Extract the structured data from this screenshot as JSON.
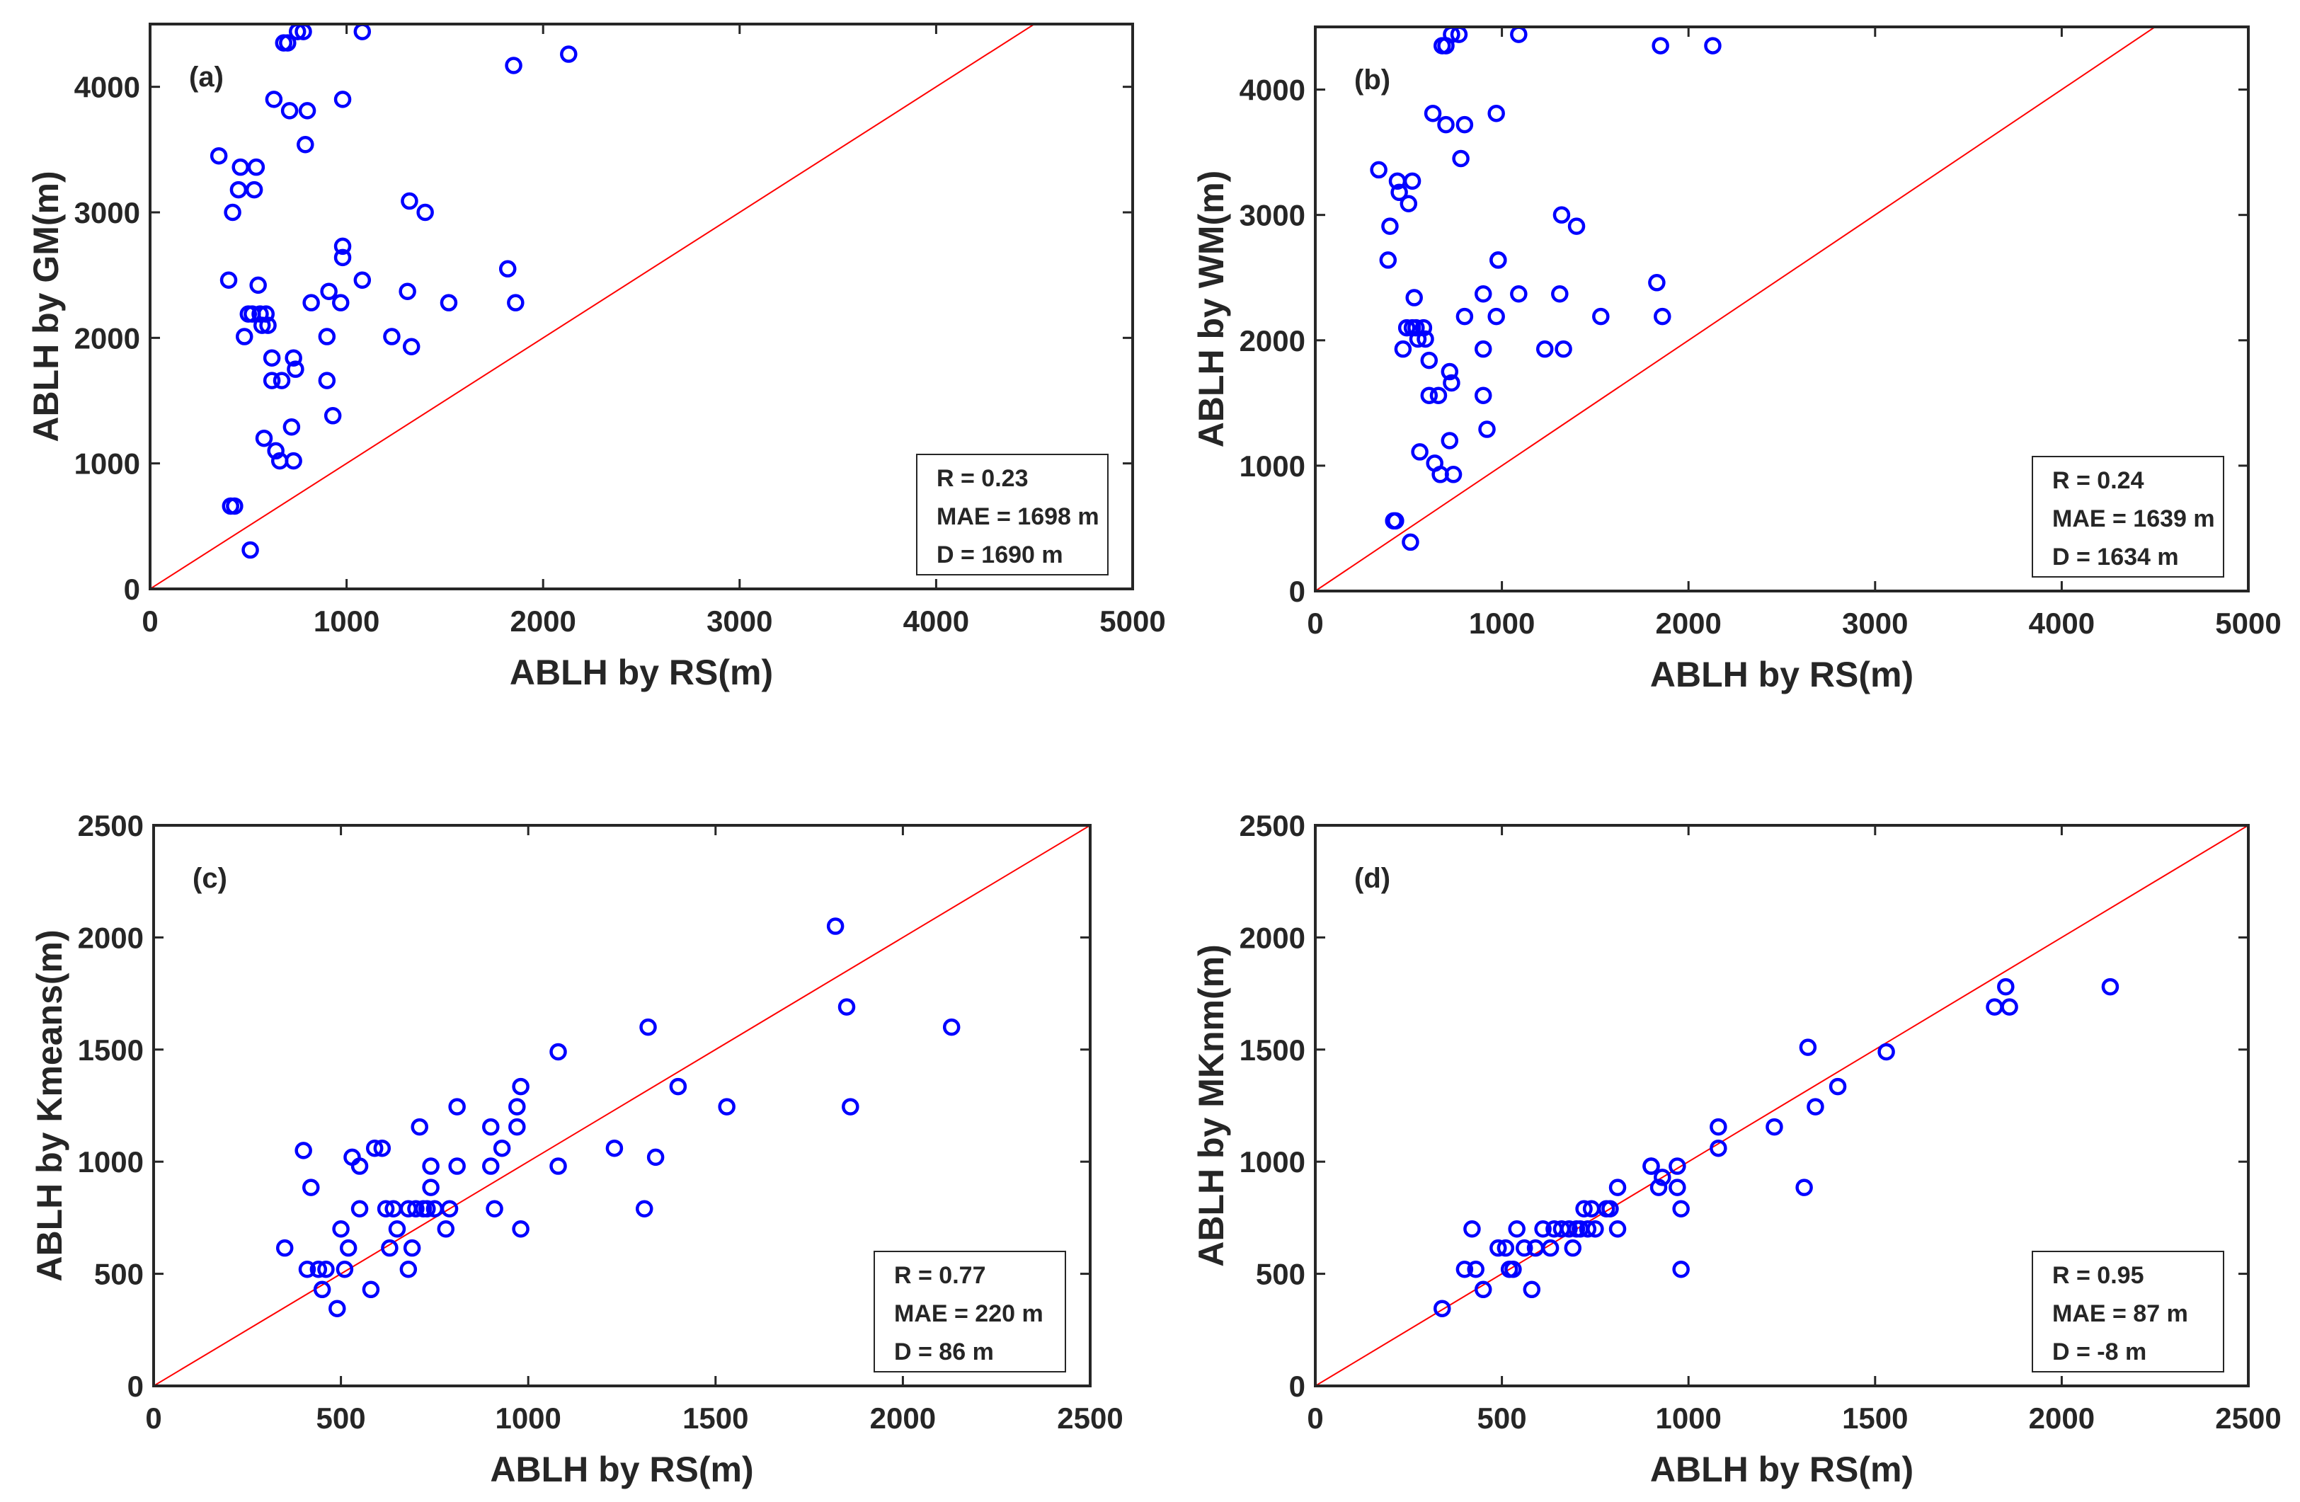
{
  "chart_data": [
    {
      "type": "scatter",
      "tag": "(a)",
      "xlabel": "ABLH by RS(m)",
      "ylabel": "ABLH by GM(m)",
      "xlim": [
        0,
        5000
      ],
      "ylim": [
        0,
        4500
      ],
      "xticks": [
        0,
        1000,
        2000,
        3000,
        4000,
        5000
      ],
      "yticks": [
        0,
        1000,
        2000,
        3000,
        4000
      ],
      "xtick_labels": [
        "0",
        "1000",
        "2000",
        "3000",
        "4000",
        "5000"
      ],
      "ytick_labels": [
        "0",
        "1000",
        "2000",
        "3000",
        "4000"
      ],
      "reference_line": "1:1",
      "marker_color": "#0000ff",
      "line_color": "#ff0000",
      "stats": [
        "R = 0.23",
        "MAE = 1698 m",
        "D = 1690 m"
      ],
      "points": [
        [
          350,
          3450
        ],
        [
          400,
          2460
        ],
        [
          420,
          3000
        ],
        [
          450,
          3180
        ],
        [
          460,
          3360
        ],
        [
          480,
          2010
        ],
        [
          500,
          2190
        ],
        [
          520,
          2190
        ],
        [
          530,
          3180
        ],
        [
          540,
          3360
        ],
        [
          550,
          2420
        ],
        [
          560,
          2190
        ],
        [
          570,
          2100
        ],
        [
          580,
          1200
        ],
        [
          590,
          2190
        ],
        [
          600,
          2100
        ],
        [
          620,
          1840
        ],
        [
          620,
          1660
        ],
        [
          630,
          3900
        ],
        [
          640,
          1100
        ],
        [
          660,
          1020
        ],
        [
          670,
          1660
        ],
        [
          680,
          4350
        ],
        [
          700,
          4350
        ],
        [
          710,
          3810
        ],
        [
          720,
          1290
        ],
        [
          730,
          1020
        ],
        [
          730,
          1840
        ],
        [
          740,
          1750
        ],
        [
          750,
          4440
        ],
        [
          780,
          4440
        ],
        [
          790,
          3540
        ],
        [
          800,
          3810
        ],
        [
          820,
          2280
        ],
        [
          900,
          1660
        ],
        [
          900,
          2010
        ],
        [
          910,
          2370
        ],
        [
          930,
          1380
        ],
        [
          970,
          2280
        ],
        [
          980,
          3900
        ],
        [
          980,
          2730
        ],
        [
          980,
          2640
        ],
        [
          1080,
          2460
        ],
        [
          1080,
          4440
        ],
        [
          1230,
          2010
        ],
        [
          1310,
          2370
        ],
        [
          1320,
          3090
        ],
        [
          1330,
          1930
        ],
        [
          1400,
          3000
        ],
        [
          1520,
          2280
        ],
        [
          1820,
          2550
        ],
        [
          1850,
          4170
        ],
        [
          1860,
          2280
        ],
        [
          2130,
          4260
        ],
        [
          410,
          660
        ],
        [
          430,
          660
        ],
        [
          510,
          310
        ]
      ]
    },
    {
      "type": "scatter",
      "tag": "(b)",
      "xlabel": "ABLH by RS(m)",
      "ylabel": "ABLH by WM(m)",
      "xlim": [
        0,
        5000
      ],
      "ylim": [
        0,
        4500
      ],
      "xticks": [
        0,
        1000,
        2000,
        3000,
        4000,
        5000
      ],
      "yticks": [
        0,
        1000,
        2000,
        3000,
        4000
      ],
      "xtick_labels": [
        "0",
        "1000",
        "2000",
        "3000",
        "4000",
        "5000"
      ],
      "ytick_labels": [
        "0",
        "1000",
        "2000",
        "3000",
        "4000"
      ],
      "reference_line": "1:1",
      "marker_color": "#0000ff",
      "line_color": "#ff0000",
      "stats": [
        "R = 0.24",
        "MAE = 1639 m",
        "D = 1634 m"
      ],
      "points": [
        [
          340,
          3360
        ],
        [
          390,
          2640
        ],
        [
          400,
          2910
        ],
        [
          420,
          560
        ],
        [
          430,
          560
        ],
        [
          440,
          3270
        ],
        [
          450,
          3180
        ],
        [
          470,
          1930
        ],
        [
          490,
          2100
        ],
        [
          500,
          3090
        ],
        [
          510,
          390
        ],
        [
          520,
          3270
        ],
        [
          520,
          2100
        ],
        [
          530,
          2340
        ],
        [
          540,
          2100
        ],
        [
          550,
          2010
        ],
        [
          560,
          1110
        ],
        [
          580,
          2100
        ],
        [
          590,
          2010
        ],
        [
          610,
          1560
        ],
        [
          610,
          1840
        ],
        [
          630,
          3810
        ],
        [
          640,
          1020
        ],
        [
          660,
          1560
        ],
        [
          670,
          930
        ],
        [
          680,
          4350
        ],
        [
          700,
          3720
        ],
        [
          700,
          4350
        ],
        [
          720,
          1750
        ],
        [
          720,
          1200
        ],
        [
          730,
          4440
        ],
        [
          730,
          1660
        ],
        [
          740,
          930
        ],
        [
          770,
          4440
        ],
        [
          780,
          3450
        ],
        [
          800,
          3720
        ],
        [
          800,
          2190
        ],
        [
          900,
          2370
        ],
        [
          900,
          1560
        ],
        [
          900,
          1930
        ],
        [
          920,
          1290
        ],
        [
          970,
          3810
        ],
        [
          970,
          2190
        ],
        [
          980,
          2640
        ],
        [
          980,
          2640
        ],
        [
          1090,
          2370
        ],
        [
          1090,
          4440
        ],
        [
          1230,
          1930
        ],
        [
          1310,
          2370
        ],
        [
          1320,
          3000
        ],
        [
          1330,
          1930
        ],
        [
          1400,
          2910
        ],
        [
          1530,
          2190
        ],
        [
          1830,
          2460
        ],
        [
          1850,
          4350
        ],
        [
          1860,
          2190
        ],
        [
          2130,
          4350
        ]
      ]
    },
    {
      "type": "scatter",
      "tag": "(c)",
      "xlabel": "ABLH by RS(m)",
      "ylabel": "ABLH by Kmeans(m)",
      "xlim": [
        0,
        2500
      ],
      "ylim": [
        0,
        2500
      ],
      "xticks": [
        0,
        500,
        1000,
        1500,
        2000,
        2500
      ],
      "yticks": [
        0,
        500,
        1000,
        1500,
        2000,
        2500
      ],
      "xtick_labels": [
        "0",
        "500",
        "1000",
        "1500",
        "2000",
        "2500"
      ],
      "ytick_labels": [
        "0",
        "500",
        "1000",
        "1500",
        "2000",
        "2500"
      ],
      "reference_line": "1:1",
      "marker_color": "#0000ff",
      "line_color": "#ff0000",
      "stats": [
        "R = 0.77",
        "MAE = 220 m",
        "D = 86 m"
      ],
      "points": [
        [
          350,
          615
        ],
        [
          400,
          1050
        ],
        [
          410,
          520
        ],
        [
          420,
          885
        ],
        [
          440,
          520
        ],
        [
          450,
          430
        ],
        [
          460,
          520
        ],
        [
          490,
          345
        ],
        [
          500,
          700
        ],
        [
          510,
          520
        ],
        [
          520,
          615
        ],
        [
          530,
          1020
        ],
        [
          550,
          980
        ],
        [
          550,
          790
        ],
        [
          580,
          430
        ],
        [
          590,
          1060
        ],
        [
          610,
          1060
        ],
        [
          620,
          790
        ],
        [
          630,
          615
        ],
        [
          640,
          790
        ],
        [
          650,
          700
        ],
        [
          680,
          790
        ],
        [
          680,
          520
        ],
        [
          690,
          615
        ],
        [
          700,
          790
        ],
        [
          710,
          1155
        ],
        [
          720,
          790
        ],
        [
          730,
          790
        ],
        [
          740,
          885
        ],
        [
          740,
          980
        ],
        [
          750,
          790
        ],
        [
          780,
          700
        ],
        [
          790,
          790
        ],
        [
          810,
          1245
        ],
        [
          810,
          980
        ],
        [
          900,
          1155
        ],
        [
          900,
          980
        ],
        [
          910,
          790
        ],
        [
          930,
          1060
        ],
        [
          970,
          1155
        ],
        [
          970,
          1245
        ],
        [
          980,
          1335
        ],
        [
          980,
          700
        ],
        [
          1080,
          1490
        ],
        [
          1080,
          980
        ],
        [
          1230,
          1060
        ],
        [
          1310,
          790
        ],
        [
          1320,
          1600
        ],
        [
          1340,
          1020
        ],
        [
          1400,
          1335
        ],
        [
          1530,
          1245
        ],
        [
          1820,
          2050
        ],
        [
          1850,
          1690
        ],
        [
          1860,
          1245
        ],
        [
          2130,
          1600
        ]
      ]
    },
    {
      "type": "scatter",
      "tag": "(d)",
      "xlabel": "ABLH by RS(m)",
      "ylabel": "ABLH by MKnm(m)",
      "xlim": [
        0,
        2500
      ],
      "ylim": [
        0,
        2500
      ],
      "xticks": [
        0,
        500,
        1000,
        1500,
        2000,
        2500
      ],
      "yticks": [
        0,
        500,
        1000,
        1500,
        2000,
        2500
      ],
      "xtick_labels": [
        "0",
        "500",
        "1000",
        "1500",
        "2000",
        "2500"
      ],
      "ytick_labels": [
        "0",
        "500",
        "1000",
        "1500",
        "2000",
        "2500"
      ],
      "reference_line": "1:1",
      "marker_color": "#0000ff",
      "line_color": "#ff0000",
      "stats": [
        "R = 0.95",
        "MAE = 87 m",
        "D = -8 m"
      ],
      "points": [
        [
          340,
          345
        ],
        [
          400,
          520
        ],
        [
          420,
          700
        ],
        [
          430,
          520
        ],
        [
          450,
          430
        ],
        [
          490,
          615
        ],
        [
          510,
          615
        ],
        [
          520,
          520
        ],
        [
          530,
          520
        ],
        [
          540,
          700
        ],
        [
          560,
          615
        ],
        [
          580,
          430
        ],
        [
          590,
          615
        ],
        [
          610,
          700
        ],
        [
          630,
          615
        ],
        [
          640,
          700
        ],
        [
          660,
          700
        ],
        [
          680,
          700
        ],
        [
          690,
          615
        ],
        [
          700,
          700
        ],
        [
          710,
          700
        ],
        [
          720,
          790
        ],
        [
          730,
          700
        ],
        [
          740,
          790
        ],
        [
          750,
          700
        ],
        [
          780,
          790
        ],
        [
          790,
          790
        ],
        [
          810,
          885
        ],
        [
          810,
          700
        ],
        [
          900,
          980
        ],
        [
          900,
          980
        ],
        [
          920,
          885
        ],
        [
          930,
          930
        ],
        [
          970,
          885
        ],
        [
          970,
          980
        ],
        [
          980,
          790
        ],
        [
          980,
          520
        ],
        [
          1080,
          1155
        ],
        [
          1080,
          1060
        ],
        [
          1230,
          1155
        ],
        [
          1310,
          885
        ],
        [
          1320,
          1510
        ],
        [
          1340,
          1245
        ],
        [
          1400,
          1335
        ],
        [
          1530,
          1490
        ],
        [
          1820,
          1690
        ],
        [
          1850,
          1780
        ],
        [
          1860,
          1690
        ],
        [
          2130,
          1780
        ]
      ]
    }
  ]
}
